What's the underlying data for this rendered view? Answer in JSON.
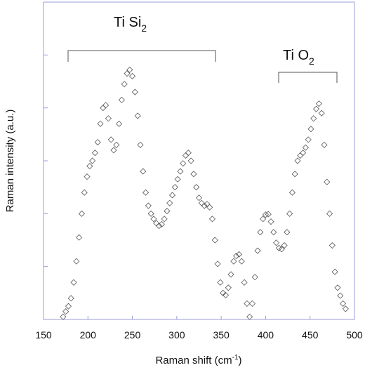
{
  "chart_data": {
    "type": "scatter",
    "ylabel": "Raman intensity (a.u.)",
    "xlabel": {
      "text": "Raman shift (cm",
      "superscript": "-1",
      "suffix": ")"
    },
    "annotations": [
      {
        "text": "Ti Si",
        "subscript": "2"
      },
      {
        "text": "Ti O",
        "subscript": "2"
      }
    ],
    "xlim": [
      150,
      500
    ],
    "xticks": [
      150,
      200,
      250,
      300,
      350,
      400,
      450,
      500
    ],
    "ylim": [
      0,
      6
    ],
    "yticks": [
      1,
      2,
      3,
      4,
      5
    ],
    "color": "#555555",
    "x": [
      172,
      175,
      178,
      181,
      184,
      187,
      190,
      193,
      196,
      199,
      202,
      205,
      208,
      211,
      214,
      217,
      220,
      223,
      226,
      229,
      232,
      235,
      238,
      241,
      244,
      247,
      250,
      253,
      256,
      259,
      262,
      265,
      268,
      271,
      274,
      277,
      280,
      283,
      286,
      289,
      292,
      295,
      298,
      301,
      304,
      307,
      310,
      313,
      316,
      319,
      322,
      325,
      328,
      331,
      334,
      337,
      340,
      343,
      346,
      349,
      352,
      355,
      358,
      361,
      364,
      367,
      370,
      373,
      376,
      379,
      382,
      385,
      388,
      391,
      394,
      397,
      400,
      403,
      406,
      409,
      412,
      415,
      418,
      421,
      424,
      427,
      430,
      433,
      436,
      439,
      442,
      445,
      448,
      451,
      454,
      457,
      460,
      463,
      466,
      469,
      472,
      475,
      478,
      481,
      484,
      487,
      490
    ],
    "values": [
      0.05,
      0.15,
      0.25,
      0.4,
      0.7,
      1.1,
      1.55,
      2.0,
      2.4,
      2.7,
      2.9,
      3.0,
      3.15,
      3.35,
      3.7,
      4.0,
      4.05,
      3.8,
      3.4,
      3.2,
      3.3,
      3.7,
      4.15,
      4.45,
      4.65,
      4.72,
      4.6,
      4.3,
      3.85,
      3.3,
      2.8,
      2.4,
      2.15,
      2.0,
      1.9,
      1.82,
      1.77,
      1.8,
      1.9,
      2.05,
      2.2,
      2.35,
      2.5,
      2.65,
      2.8,
      2.95,
      3.1,
      3.15,
      3.0,
      2.75,
      2.5,
      2.3,
      2.2,
      2.15,
      2.18,
      2.12,
      1.9,
      1.5,
      1.05,
      0.7,
      0.5,
      0.46,
      0.6,
      0.85,
      1.1,
      1.2,
      1.23,
      1.1,
      0.7,
      0.3,
      0.05,
      0.3,
      0.8,
      1.3,
      1.65,
      1.9,
      1.98,
      1.99,
      1.85,
      1.65,
      1.45,
      1.35,
      1.33,
      1.4,
      1.65,
      2.0,
      2.4,
      2.75,
      3.0,
      3.1,
      3.15,
      3.25,
      3.4,
      3.6,
      3.8,
      3.98,
      4.08,
      3.9,
      3.3,
      2.6,
      2.0,
      1.4,
      0.9,
      0.6,
      0.45,
      0.3,
      0.2
    ]
  }
}
